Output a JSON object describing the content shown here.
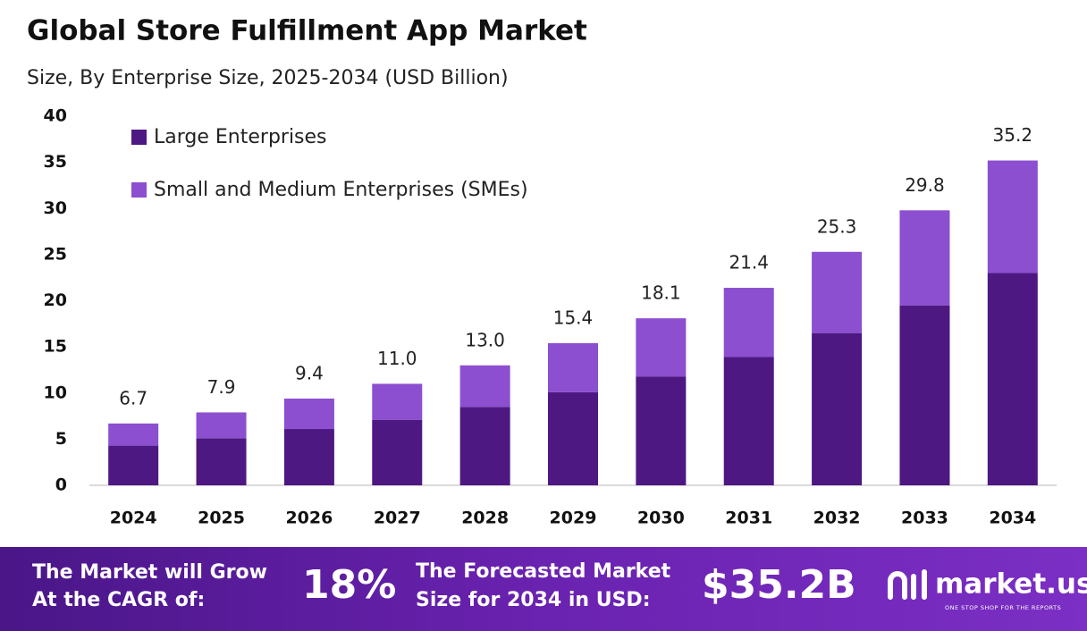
{
  "chart_data": {
    "type": "bar",
    "stacked": true,
    "title": "Global Store Fulfillment App Market",
    "subtitle": "Size, By Enterprise Size, 2025-2034 (USD Billion)",
    "categories": [
      "2024",
      "2025",
      "2026",
      "2027",
      "2028",
      "2029",
      "2030",
      "2031",
      "2032",
      "2033",
      "2034"
    ],
    "series": [
      {
        "name": "Large Enterprises",
        "color": "#4e1883",
        "values": [
          4.3,
          5.1,
          6.1,
          7.1,
          8.5,
          10.1,
          11.8,
          13.9,
          16.5,
          19.5,
          23.0
        ]
      },
      {
        "name": "Small and Medium Enterprises (SMEs)",
        "color": "#8c4fd0",
        "values": [
          2.4,
          2.8,
          3.3,
          3.9,
          4.5,
          5.3,
          6.3,
          7.5,
          8.8,
          10.3,
          12.2
        ]
      }
    ],
    "total_labels": [
      "6.7",
      "7.9",
      "9.4",
      "11.0",
      "13.0",
      "15.4",
      "18.1",
      "21.4",
      "25.3",
      "29.8",
      "35.2"
    ],
    "ylim": [
      0,
      40
    ],
    "yticks": [
      0,
      5,
      10,
      15,
      20,
      25,
      30,
      35,
      40
    ],
    "grid": false,
    "legend": "top-left"
  },
  "footer": {
    "cagr_label": [
      "The Market will Grow",
      "At the CAGR of:"
    ],
    "cagr_value": "18%",
    "forecast_label": [
      "The Forecasted Market",
      "Size for 2034 in USD:"
    ],
    "forecast_value": "$35.2B",
    "brand": "market.us",
    "tagline": "ONE STOP SHOP FOR THE REPORTS"
  }
}
